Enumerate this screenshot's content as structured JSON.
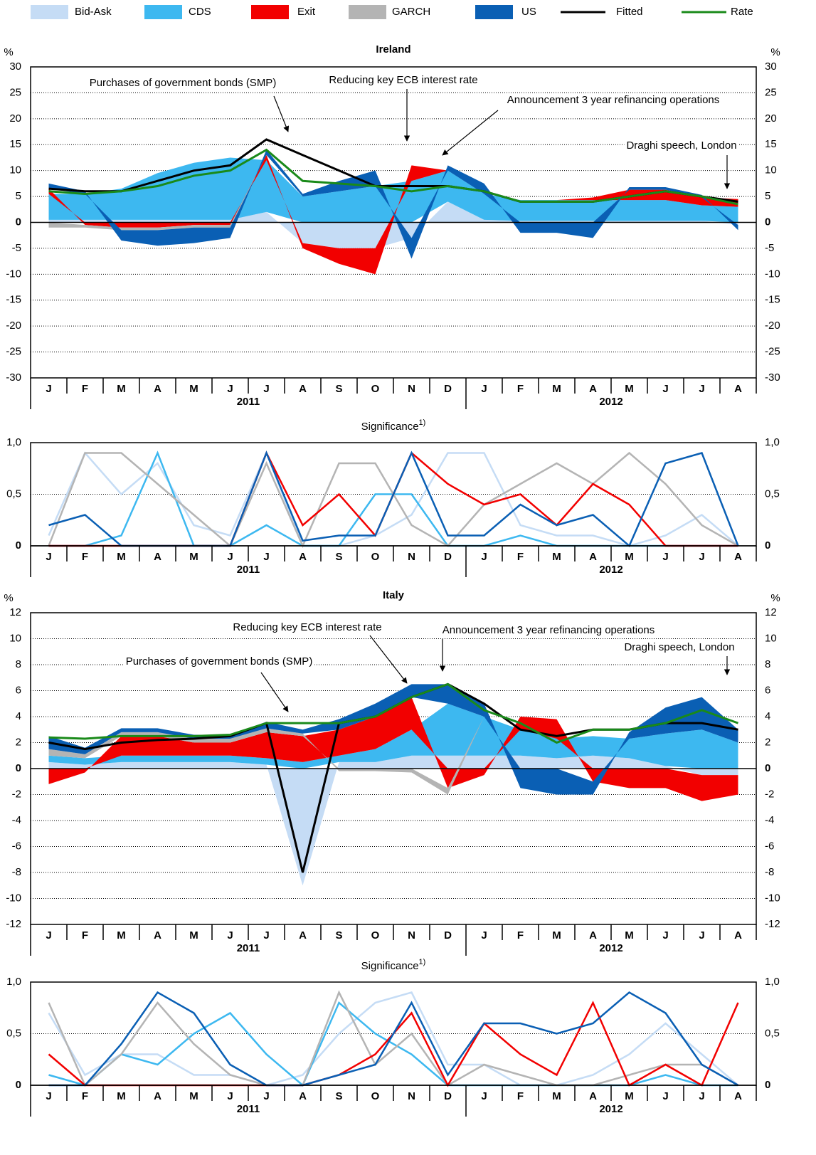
{
  "chart_data": [
    {
      "type": "stacked-area-line",
      "title": "Ireland",
      "y_unit": "%",
      "categories": [
        "J",
        "F",
        "M",
        "A",
        "M",
        "J",
        "J",
        "A",
        "S",
        "O",
        "N",
        "D",
        "J",
        "F",
        "M",
        "A",
        "M",
        "J",
        "J",
        "A"
      ],
      "year_labels": [
        "2011",
        "2012"
      ],
      "ylim": [
        -30,
        30
      ],
      "yticks": [
        -30,
        -25,
        -20,
        -15,
        -10,
        -5,
        0,
        5,
        10,
        15,
        20,
        25,
        30
      ],
      "grid": true,
      "annotations": [
        {
          "text": "Purchases of government bonds (SMP)"
        },
        {
          "text": "Reducing key ECB interest rate"
        },
        {
          "text": "Announcement 3 year refinancing operations"
        },
        {
          "text": "Draghi speech, London"
        }
      ],
      "series": [
        {
          "name": "Bid-Ask",
          "type": "area",
          "color": "#c5dcf5",
          "values": [
            0.5,
            0.5,
            0.5,
            0.5,
            0.5,
            0.5,
            2,
            -4,
            -5,
            -5,
            -3,
            4,
            0.5,
            0.3,
            0.3,
            0.3,
            0.3,
            0.3,
            0.3,
            -0.5
          ]
        },
        {
          "name": "CDS",
          "type": "area",
          "color": "#3db8f0",
          "values": [
            5,
            5,
            6,
            9,
            11,
            12,
            10,
            5,
            6,
            7,
            8,
            6,
            5,
            4,
            4,
            4,
            4,
            4,
            3,
            3
          ]
        },
        {
          "name": "Exit",
          "type": "area",
          "color": "#f20000",
          "values": [
            1,
            -0.5,
            -1,
            -1,
            -0.5,
            -0.5,
            1,
            -1,
            -3,
            -5,
            3,
            0,
            0,
            0,
            0,
            0.5,
            2,
            2,
            1.5,
            1.5
          ]
        },
        {
          "name": "GARCH",
          "type": "area",
          "color": "#b4b4b4",
          "values": [
            -1,
            -0.5,
            -0.5,
            -0.5,
            -0.5,
            -0.5,
            0,
            0,
            0,
            0,
            0,
            0,
            0,
            0,
            0,
            0,
            0,
            0,
            0,
            0
          ]
        },
        {
          "name": "US",
          "type": "area",
          "color": "#0a5fb4",
          "values": [
            1,
            0.5,
            -2,
            -3,
            -3,
            -2,
            1,
            0.5,
            2,
            3,
            -4,
            1,
            2,
            -2,
            -2,
            -3,
            0.5,
            0.5,
            0.5,
            -1
          ]
        },
        {
          "name": "Fitted",
          "type": "line",
          "color": "#000000",
          "values": [
            6.5,
            6,
            6,
            8,
            10,
            11,
            16,
            13,
            10,
            7,
            7,
            7,
            6,
            4,
            4,
            4,
            5,
            6,
            5,
            4
          ]
        },
        {
          "name": "Rate",
          "type": "line",
          "color": "#1a8a1a",
          "values": [
            6,
            5.5,
            6,
            7,
            9,
            10,
            14,
            8,
            7.5,
            7,
            6,
            7,
            6,
            4,
            4,
            4,
            5,
            6,
            5,
            3.5
          ]
        }
      ]
    },
    {
      "type": "line",
      "title": "Significance",
      "title_note": "1)",
      "categories": [
        "J",
        "F",
        "M",
        "A",
        "M",
        "J",
        "J",
        "A",
        "S",
        "O",
        "N",
        "D",
        "J",
        "F",
        "M",
        "A",
        "M",
        "J",
        "J",
        "A"
      ],
      "year_labels": [
        "2011",
        "2012"
      ],
      "ylim": [
        0,
        1
      ],
      "yticks": [
        0,
        {
          "value": 0.5,
          "label": "0,5"
        },
        {
          "value": 1,
          "label": "1,0"
        }
      ],
      "grid": true,
      "series": [
        {
          "color": "#c5dcf5",
          "values": [
            0.1,
            0.9,
            0.5,
            0.8,
            0.2,
            0.1,
            0.9,
            0,
            0,
            0.1,
            0.3,
            0.9,
            0.9,
            0.2,
            0.1,
            0.1,
            0,
            0.1,
            0.3,
            0
          ]
        },
        {
          "color": "#3db8f0",
          "values": [
            0,
            0,
            0.1,
            0.9,
            0,
            0,
            0.2,
            0,
            0,
            0.5,
            0.5,
            0,
            0,
            0.1,
            0,
            0,
            0,
            0,
            0,
            0
          ]
        },
        {
          "color": "#b4b4b4",
          "values": [
            0,
            0.9,
            0.9,
            0.6,
            0.3,
            0,
            0.8,
            0,
            0.8,
            0.8,
            0.2,
            0,
            0.4,
            0.6,
            0.8,
            0.6,
            0.9,
            0.6,
            0.2,
            0
          ]
        },
        {
          "color": "#f20000",
          "values": [
            0,
            0,
            0,
            0,
            0,
            0,
            0.9,
            0.2,
            0.5,
            0.1,
            0.9,
            0.6,
            0.4,
            0.5,
            0.2,
            0.6,
            0.4,
            0,
            0,
            0
          ]
        },
        {
          "color": "#0a5fb4",
          "values": [
            0.2,
            0.3,
            0,
            0,
            0,
            0,
            0.9,
            0.05,
            0.1,
            0.1,
            0.9,
            0.1,
            0.1,
            0.4,
            0.2,
            0.3,
            0,
            0.8,
            0.9,
            0
          ]
        }
      ]
    },
    {
      "type": "stacked-area-line",
      "title": "Italy",
      "y_unit": "%",
      "categories": [
        "J",
        "F",
        "M",
        "A",
        "M",
        "J",
        "J",
        "A",
        "S",
        "O",
        "N",
        "D",
        "J",
        "F",
        "M",
        "A",
        "M",
        "J",
        "J",
        "A"
      ],
      "year_labels": [
        "2011",
        "2012"
      ],
      "ylim": [
        -12,
        12
      ],
      "yticks": [
        -12,
        -10,
        -8,
        -6,
        -4,
        -2,
        0,
        2,
        4,
        6,
        8,
        10,
        12
      ],
      "grid": true,
      "annotations": [
        {
          "text": "Reducing key ECB interest rate"
        },
        {
          "text": "Announcement 3 year refinancing operations"
        },
        {
          "text": "Purchases of government bonds (SMP)"
        },
        {
          "text": "Draghi speech, London"
        }
      ],
      "series": [
        {
          "type": "area",
          "color": "#c5dcf5",
          "values": [
            0.5,
            0.3,
            0.5,
            0.5,
            0.5,
            0.5,
            0.3,
            -9,
            0.5,
            0.5,
            1,
            1,
            1,
            1,
            0.8,
            1,
            0.8,
            0.2,
            -0.5,
            -0.5
          ]
        },
        {
          "type": "area",
          "color": "#3db8f0",
          "values": [
            0.5,
            0.5,
            0.5,
            0.5,
            0.5,
            0.5,
            0.5,
            0.5,
            0.5,
            1,
            2,
            4,
            3,
            2,
            1.5,
            1.5,
            1.5,
            2.5,
            3,
            2
          ]
        },
        {
          "type": "area",
          "color": "#f20000",
          "values": [
            -1.2,
            -0.3,
            1.5,
            1.5,
            1,
            1,
            2,
            2,
            2,
            2.5,
            2.5,
            -1.5,
            -0.5,
            1,
            1.5,
            -1,
            -1.5,
            -1.5,
            -2,
            -1.5
          ]
        },
        {
          "type": "area",
          "color": "#b4b4b4",
          "values": [
            0.5,
            0.3,
            0.3,
            0.3,
            0.3,
            0.3,
            0.3,
            0.2,
            -0.2,
            -0.2,
            -0.3,
            -0.5,
            0,
            0,
            0,
            0,
            0,
            0,
            0,
            0
          ]
        },
        {
          "type": "area",
          "color": "#0a5fb4",
          "values": [
            1,
            0.5,
            0.3,
            0.3,
            0.3,
            0.3,
            0.5,
            0.3,
            0.8,
            1,
            1,
            1.5,
            1,
            -1.5,
            -2,
            -1,
            0.5,
            2,
            2.5,
            1
          ]
        },
        {
          "type": "line",
          "color": "#000000",
          "values": [
            2,
            1.5,
            2,
            2.2,
            2.3,
            2.5,
            3.5,
            -8,
            3.5,
            4,
            5.5,
            6.5,
            5,
            3,
            2.5,
            3,
            3,
            3.5,
            3.5,
            3
          ]
        },
        {
          "type": "line",
          "color": "#1a8a1a",
          "values": [
            2.4,
            2.3,
            2.5,
            2.5,
            2.5,
            2.6,
            3.5,
            3.5,
            3.5,
            4,
            5.5,
            6.5,
            4.5,
            3.5,
            2,
            3,
            3,
            3.5,
            4.5,
            3.5
          ]
        }
      ]
    },
    {
      "type": "line",
      "title": "Significance",
      "title_note": "1)",
      "categories": [
        "J",
        "F",
        "M",
        "A",
        "M",
        "J",
        "J",
        "A",
        "S",
        "O",
        "N",
        "D",
        "J",
        "F",
        "M",
        "A",
        "M",
        "J",
        "J",
        "A"
      ],
      "year_labels": [
        "2011",
        "2012"
      ],
      "ylim": [
        0,
        1
      ],
      "yticks": [
        0,
        {
          "value": 0.5,
          "label": "0,5"
        },
        {
          "value": 1,
          "label": "1,0"
        }
      ],
      "grid": true,
      "series": [
        {
          "color": "#c5dcf5",
          "values": [
            0.7,
            0.1,
            0.3,
            0.3,
            0.1,
            0.1,
            0,
            0.1,
            0.5,
            0.8,
            0.9,
            0.2,
            0.2,
            0,
            0,
            0.1,
            0.3,
            0.6,
            0.3,
            0
          ]
        },
        {
          "color": "#3db8f0",
          "values": [
            0.1,
            0,
            0.3,
            0.2,
            0.5,
            0.7,
            0.3,
            0,
            0.8,
            0.5,
            0.3,
            0,
            0,
            0,
            0,
            0,
            0,
            0.1,
            0,
            0
          ]
        },
        {
          "color": "#b4b4b4",
          "values": [
            0.8,
            0,
            0.3,
            0.8,
            0.4,
            0.1,
            0,
            0,
            0.9,
            0.2,
            0.5,
            0,
            0.2,
            0.1,
            0,
            0,
            0.1,
            0.2,
            0.2,
            0
          ]
        },
        {
          "color": "#f20000",
          "values": [
            0.3,
            0,
            0,
            0,
            0,
            0,
            0,
            0,
            0.1,
            0.3,
            0.7,
            0,
            0.6,
            0.3,
            0.1,
            0.8,
            0,
            0.2,
            0,
            0.8
          ]
        },
        {
          "color": "#0a5fb4",
          "values": [
            0,
            0,
            0.4,
            0.9,
            0.7,
            0.2,
            0,
            0,
            0.1,
            0.2,
            0.8,
            0.1,
            0.6,
            0.6,
            0.5,
            0.6,
            0.9,
            0.7,
            0.2,
            0
          ]
        }
      ]
    }
  ]
}
